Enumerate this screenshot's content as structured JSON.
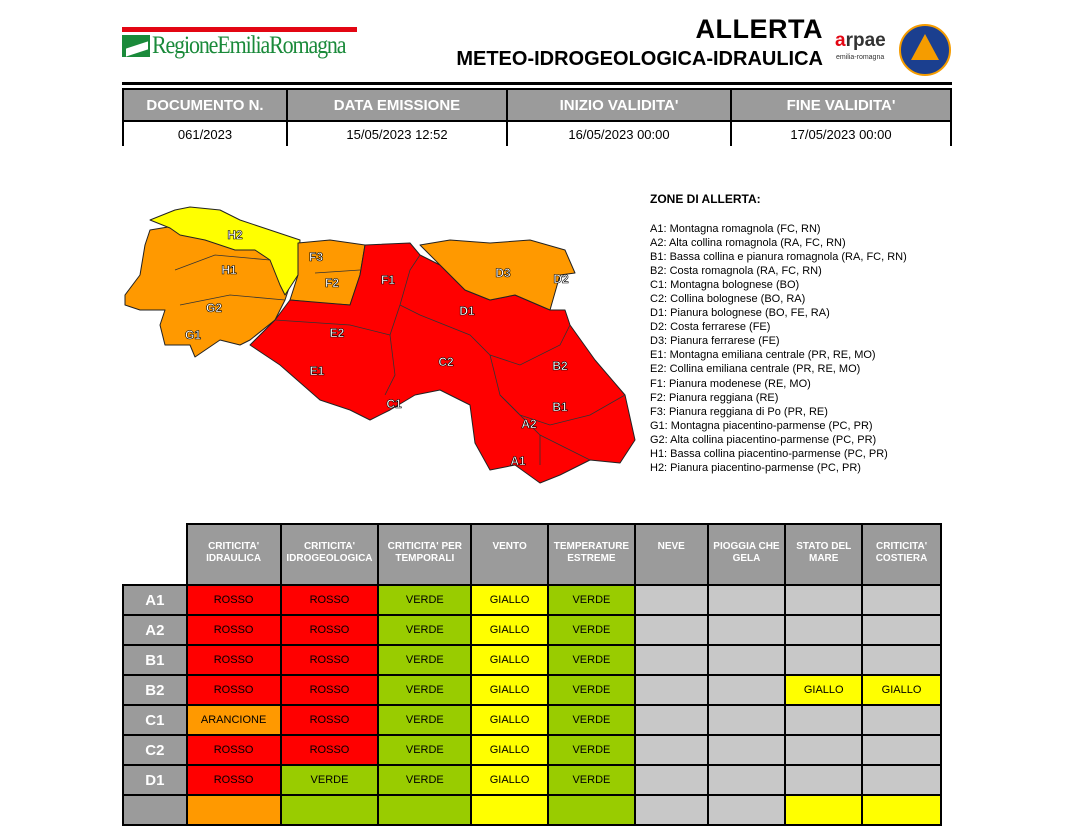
{
  "header": {
    "logo_text": "RegioneEmiliaRomagna",
    "title": "ALLERTA",
    "subtitle": "METEO-IDROGEOLOGICA-IDRAULICA",
    "arpae_logo": "arpae",
    "arpae_sub": "emilia-romagna",
    "protezione_civile_logo": "protezione-civile-icon"
  },
  "doc": {
    "headers": [
      "DOCUMENTO N.",
      "DATA EMISSIONE",
      "INIZIO VALIDITA'",
      "FINE VALIDITA'"
    ],
    "values": [
      "061/2023",
      "15/05/2023 12:52",
      "16/05/2023 00:00",
      "17/05/2023 00:00"
    ]
  },
  "zones": {
    "title": "ZONE DI ALLERTA:",
    "items": [
      "A1: Montagna romagnola (FC, RN)",
      "A2: Alta collina romagnola (RA, FC, RN)",
      "B1: Bassa collina e pianura romagnola (RA, FC, RN)",
      "B2: Costa romagnola (RA, FC, RN)",
      "C1: Montagna bolognese (BO)",
      "C2: Collina bolognese (BO, RA)",
      "D1: Pianura bolognese (BO, FE, RA)",
      "D2: Costa ferrarese (FE)",
      "D3: Pianura ferrarese (FE)",
      "E1: Montagna emiliana centrale (PR, RE, MO)",
      "E2: Collina emiliana centrale (PR, RE, MO)",
      "F1: Pianura modenese (RE, MO)",
      "F2: Pianura reggiana (RE)",
      "F3: Pianura reggiana di Po (PR, RE)",
      "G1: Montagna piacentino-parmense (PC, PR)",
      "G2: Alta collina piacentino-parmense (PC, PR)",
      "H1: Bassa collina piacentino-parmense (PC, PR)",
      "H2: Pianura piacentino-parmense (PC, PR)"
    ]
  },
  "map": {
    "labels": [
      "H2",
      "H1",
      "G2",
      "G1",
      "F3",
      "F2",
      "F1",
      "E2",
      "E1",
      "D1",
      "C2",
      "C1",
      "D3",
      "D2",
      "B2",
      "B1",
      "A2",
      "A1"
    ],
    "colors": {
      "ROSSO": "#ff0000",
      "ARANCIONE": "#ff9900",
      "GIALLO": "#ffff00",
      "VERDE": "#99cc00"
    }
  },
  "alert": {
    "headers": [
      "CRITICITA' IDRAULICA",
      "CRITICITA' IDROGEOLOGICA",
      "CRITICITA' PER TEMPORALI",
      "VENTO",
      "TEMPERATURE ESTREME",
      "NEVE",
      "PIOGGIA CHE GELA",
      "STATO DEL MARE",
      "CRITICITA' COSTIERA"
    ],
    "rows": [
      {
        "zone": "A1",
        "cells": [
          "ROSSO",
          "ROSSO",
          "VERDE",
          "GIALLO",
          "VERDE",
          "",
          "",
          "",
          ""
        ]
      },
      {
        "zone": "A2",
        "cells": [
          "ROSSO",
          "ROSSO",
          "VERDE",
          "GIALLO",
          "VERDE",
          "",
          "",
          "",
          ""
        ]
      },
      {
        "zone": "B1",
        "cells": [
          "ROSSO",
          "ROSSO",
          "VERDE",
          "GIALLO",
          "VERDE",
          "",
          "",
          "",
          ""
        ]
      },
      {
        "zone": "B2",
        "cells": [
          "ROSSO",
          "ROSSO",
          "VERDE",
          "GIALLO",
          "VERDE",
          "",
          "",
          "GIALLO",
          "GIALLO"
        ]
      },
      {
        "zone": "C1",
        "cells": [
          "ARANCIONE",
          "ROSSO",
          "VERDE",
          "GIALLO",
          "VERDE",
          "",
          "",
          "",
          ""
        ]
      },
      {
        "zone": "C2",
        "cells": [
          "ROSSO",
          "ROSSO",
          "VERDE",
          "GIALLO",
          "VERDE",
          "",
          "",
          "",
          ""
        ]
      },
      {
        "zone": "D1",
        "cells": [
          "ROSSO",
          "VERDE",
          "VERDE",
          "GIALLO",
          "VERDE",
          "",
          "",
          "",
          ""
        ]
      }
    ],
    "partial_row_levels": [
      "ARANCIONE",
      "VERDE",
      "VERDE",
      "GIALLO",
      "VERDE",
      "",
      "",
      "GIALLO",
      "GIALLO"
    ]
  }
}
